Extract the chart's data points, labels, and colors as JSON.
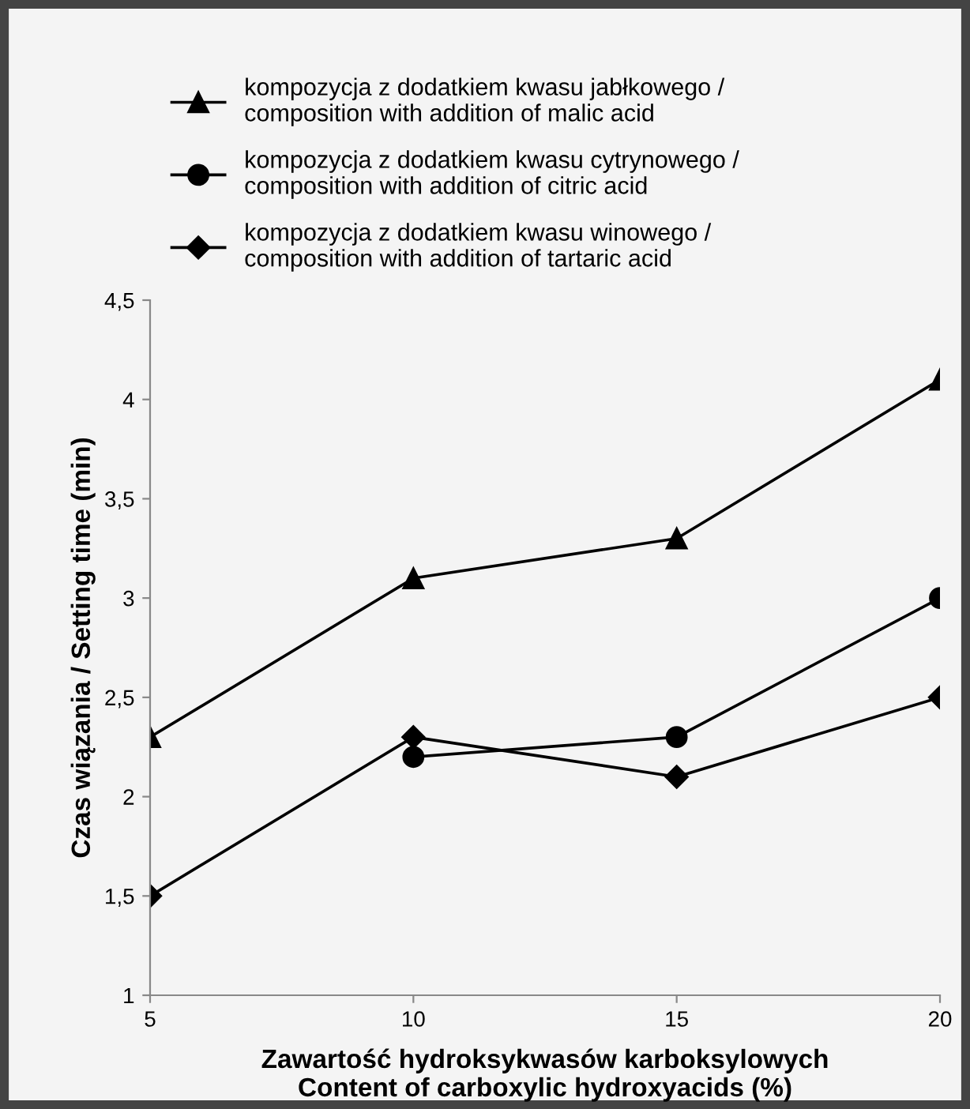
{
  "chart_data": {
    "type": "line",
    "x": [
      5,
      10,
      15,
      20
    ],
    "series": [
      {
        "name": "kompozycja z dodatkiem kwasu jabłkowego /\ncomposition with addition of malic acid",
        "color": "#000000",
        "marker": "triangle",
        "values": [
          2.3,
          3.1,
          3.3,
          4.1
        ]
      },
      {
        "name": "kompozycja z dodatkiem kwasu cytrynowego /\ncomposition with addition of citric acid",
        "color": "#000000",
        "marker": "circle",
        "values": [
          null,
          2.2,
          2.3,
          3.0
        ]
      },
      {
        "name": "kompozycja z dodatkiem kwasu winowego /\ncomposition with addition of tartaric acid",
        "color": "#000000",
        "marker": "diamond",
        "values": [
          1.5,
          2.3,
          2.1,
          2.5
        ]
      }
    ],
    "xlabel": "Zawartość hydroksykwasów karboksylowych\nContent of carboxylic hydroxyacids (%)",
    "ylabel": "Czas wiązania / Setting time (min)",
    "xlim": [
      5,
      20
    ],
    "xticks": [
      5,
      10,
      15,
      20
    ],
    "ylim": [
      1,
      4.5
    ],
    "yticks": [
      1,
      {
        "value": 1.5,
        "label": "1,5"
      },
      2,
      {
        "value": 2.5,
        "label": "2,5"
      },
      3,
      {
        "value": 3.5,
        "label": "3,5"
      },
      4,
      {
        "value": 4.5,
        "label": "4,5"
      }
    ],
    "grid": false,
    "legend": "top",
    "line_style": "solid"
  }
}
